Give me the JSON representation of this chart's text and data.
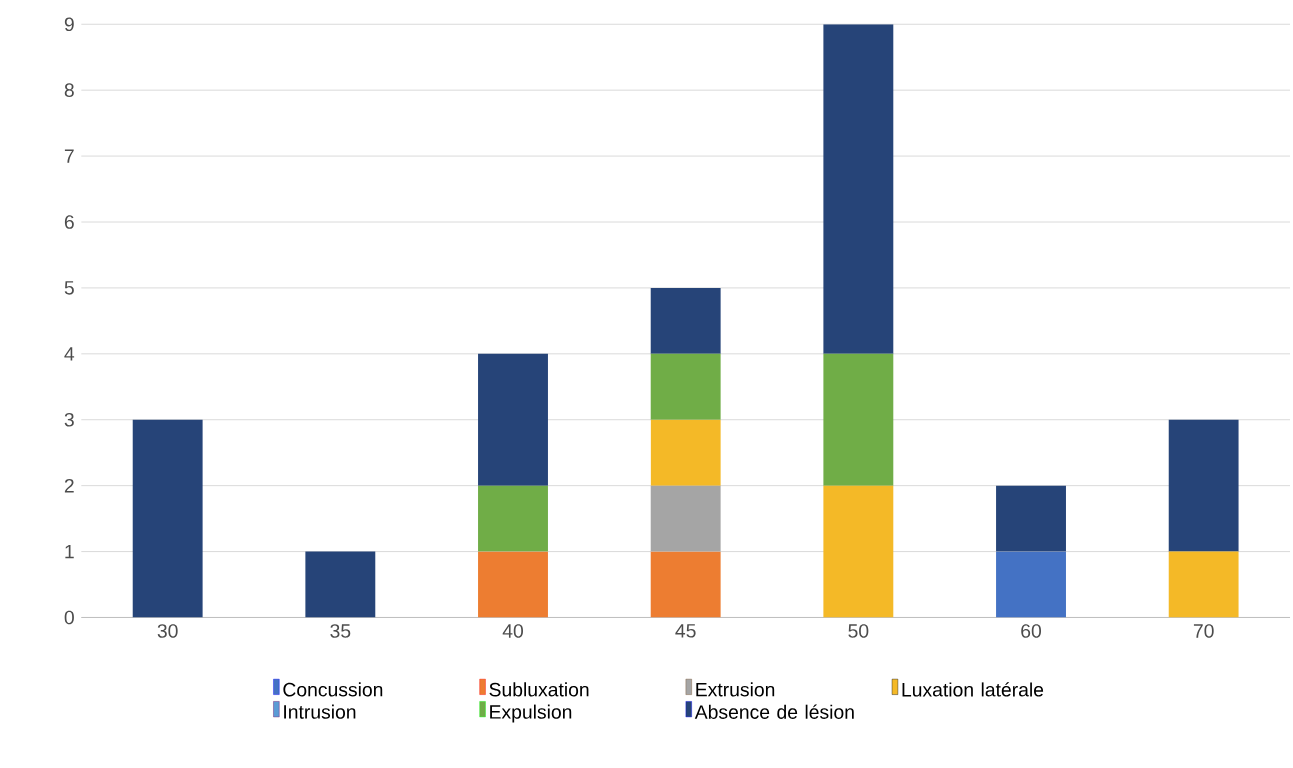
{
  "chart_data": {
    "type": "bar",
    "stacked": true,
    "categories": [
      "30",
      "35",
      "40",
      "45",
      "50",
      "60",
      "70"
    ],
    "series": [
      {
        "name": "Concussion",
        "color": "#4472c4",
        "values": [
          0,
          0,
          0,
          0,
          0,
          1,
          0
        ]
      },
      {
        "name": "Subluxation",
        "color": "#ed7d31",
        "values": [
          0,
          0,
          1,
          1,
          0,
          0,
          0
        ]
      },
      {
        "name": "Extrusion",
        "color": "#a5a5a5",
        "values": [
          0,
          0,
          0,
          1,
          0,
          0,
          0
        ]
      },
      {
        "name": "Luxation latérale",
        "color": "#f4b927",
        "values": [
          0,
          0,
          0,
          1,
          2,
          0,
          1
        ]
      },
      {
        "name": "Intrusion",
        "color": "#5b9bd5",
        "values": [
          0,
          0,
          0,
          0,
          0,
          0,
          0
        ]
      },
      {
        "name": "Expulsion",
        "color": "#70ad47",
        "values": [
          0,
          0,
          1,
          1,
          2,
          0,
          0
        ]
      },
      {
        "name": "Absence de lésion",
        "color": "#264478",
        "values": [
          3,
          1,
          2,
          1,
          5,
          1,
          2
        ]
      }
    ],
    "ylim": [
      0,
      9
    ],
    "yticks": [
      0,
      1,
      2,
      3,
      4,
      5,
      6,
      7,
      8,
      9
    ],
    "grid": "y",
    "legend": "bottom"
  }
}
